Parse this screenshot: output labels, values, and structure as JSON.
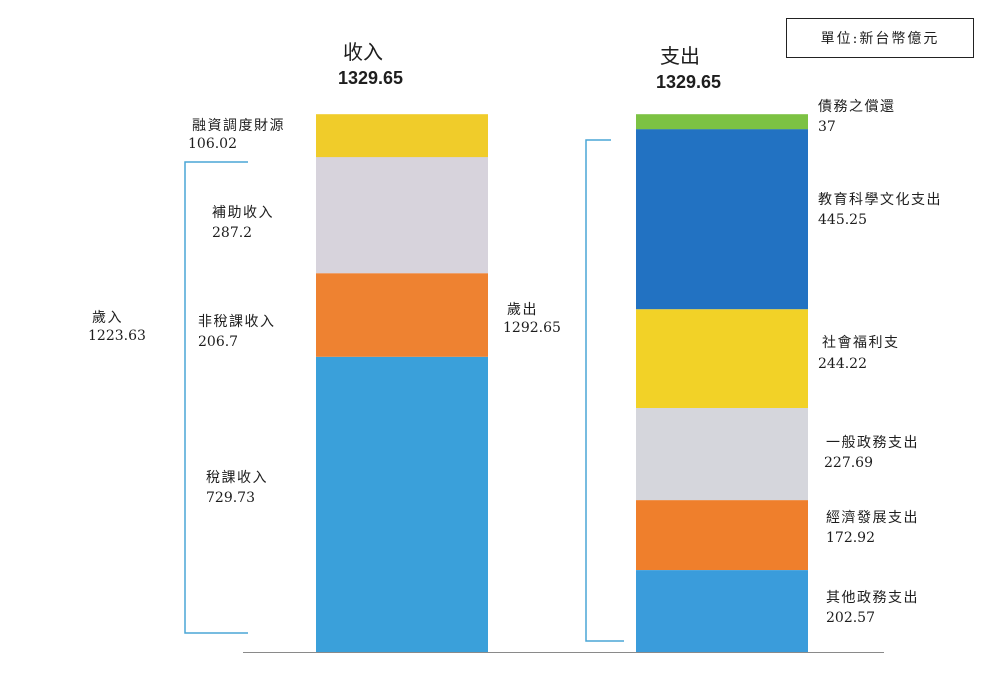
{
  "unit_label": "單位:新台幣億元",
  "colors": {
    "financing": "#f0cc2a",
    "subsidy": "#d7d3dc",
    "nontax": "#ee8231",
    "tax": "#3aa0da",
    "debt": "#7cc243",
    "education": "#2272c2",
    "welfare": "#f2d227",
    "general": "#d5d6dc",
    "economic": "#ef7f2c",
    "other": "#3a9cdb",
    "bracket": "#4aa6d6"
  },
  "chart_data": {
    "type": "bar",
    "stacked": true,
    "categories": [
      "收入",
      "支出"
    ],
    "totals": {
      "income": "1329.65",
      "expenditure": "1329.65"
    },
    "series": [
      {
        "stack": "收入",
        "name": "稅課收入",
        "value": 729.73,
        "display": "729.73",
        "color": "#3aa0da"
      },
      {
        "stack": "收入",
        "name": "非稅課收入",
        "value": 206.7,
        "display": "206.7",
        "color": "#ee8231"
      },
      {
        "stack": "收入",
        "name": "補助收入",
        "value": 287.2,
        "display": "287.2",
        "color": "#d7d3dc"
      },
      {
        "stack": "收入",
        "name": "融資調度財源",
        "value": 106.02,
        "display": "106.02",
        "color": "#f0cc2a"
      },
      {
        "stack": "支出",
        "name": "其他政務支出",
        "value": 202.57,
        "display": "202.57",
        "color": "#3a9cdb"
      },
      {
        "stack": "支出",
        "name": "經濟發展支出",
        "value": 172.92,
        "display": "172.92",
        "color": "#ef7f2c"
      },
      {
        "stack": "支出",
        "name": "一般政務支出",
        "value": 227.69,
        "display": "227.69",
        "color": "#d5d6dc"
      },
      {
        "stack": "支出",
        "name": "社會福利支",
        "value": 244.22,
        "display": "244.22",
        "color": "#f2d227"
      },
      {
        "stack": "支出",
        "name": "教育科學文化支出",
        "value": 445.25,
        "display": "445.25",
        "color": "#2272c2"
      },
      {
        "stack": "支出",
        "name": "債務之償還",
        "value": 37,
        "display": "37",
        "color": "#7cc243"
      }
    ],
    "brackets": [
      {
        "name": "歲入",
        "value": "1223.63"
      },
      {
        "name": "歲出",
        "value": "1292.65"
      }
    ]
  }
}
